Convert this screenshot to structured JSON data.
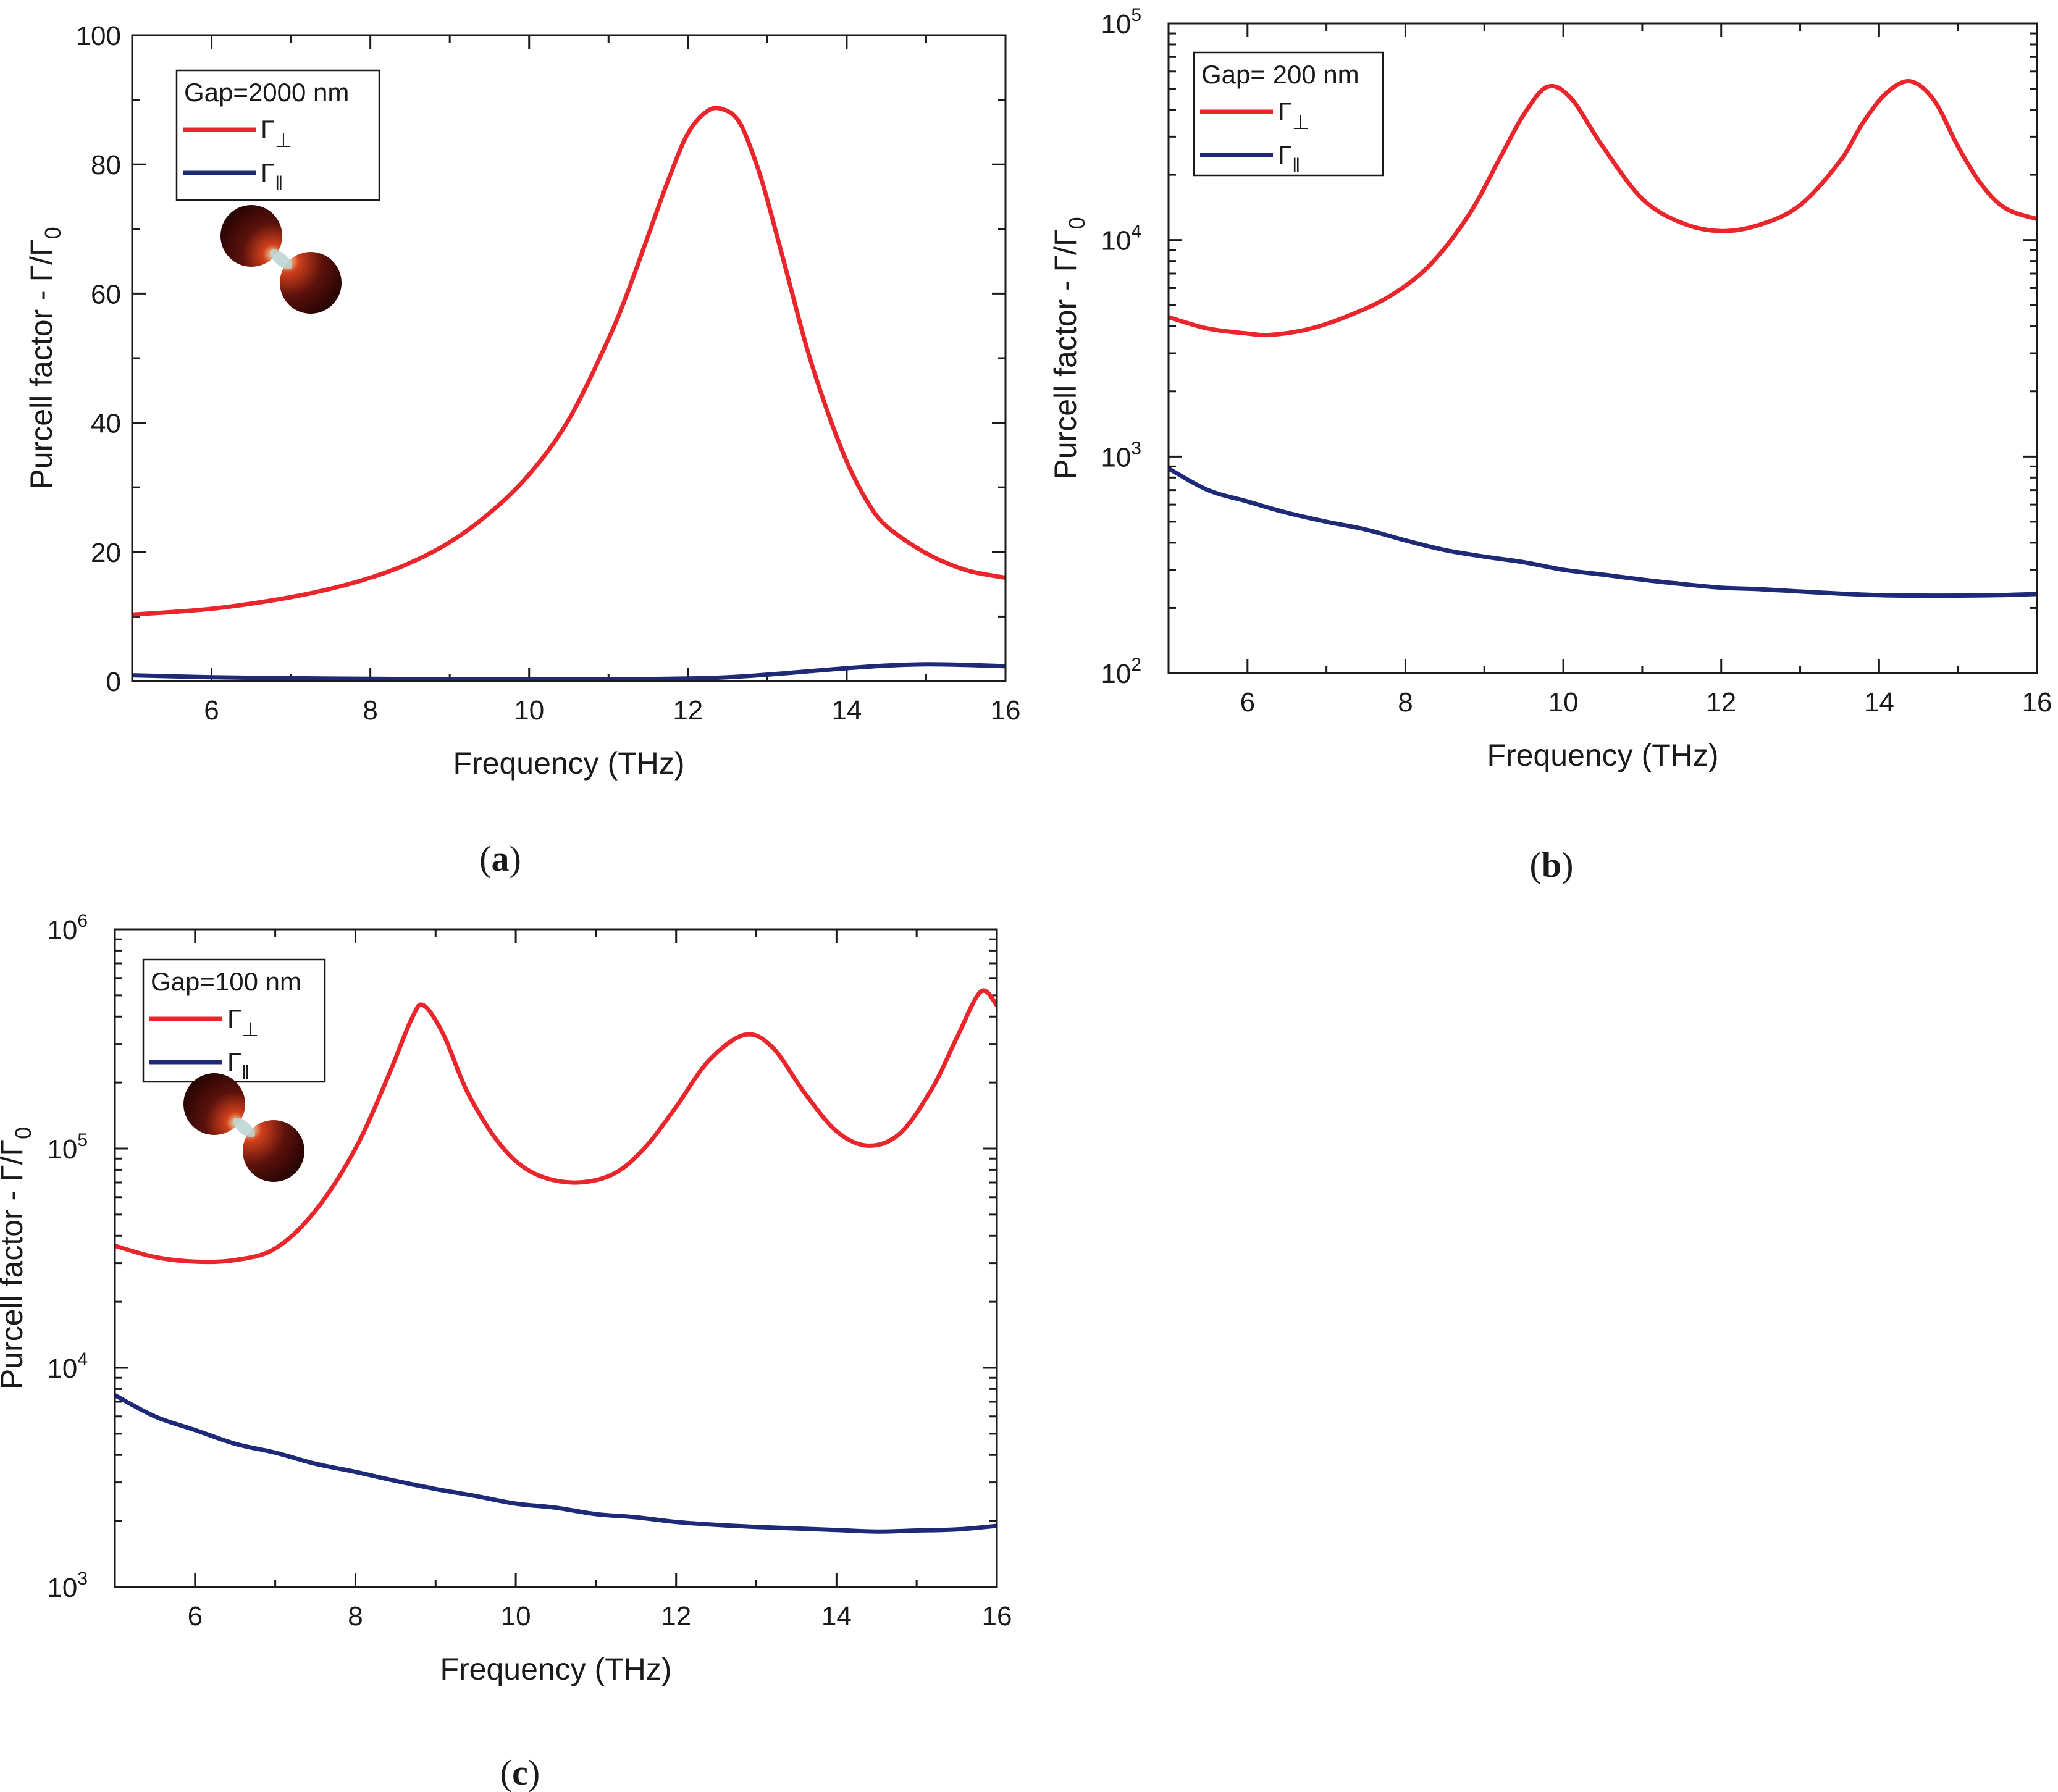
{
  "chart_data": [
    {
      "type": "line",
      "panel_label": "a",
      "xlabel": "Frequency (THz)",
      "ylabel": "Purcell factor - Γ/Γ0",
      "yscale": "linear",
      "xlim": [
        5,
        16
      ],
      "ylim": [
        0,
        100
      ],
      "xticks": [
        6,
        8,
        10,
        12,
        14,
        16
      ],
      "yticks": [
        0,
        20,
        40,
        60,
        80,
        100
      ],
      "legend": {
        "title": "Gap=2000 nm",
        "position": "top-left"
      },
      "series": [
        {
          "name": "Γ⊥",
          "color": "#e8262b",
          "x": [
            5,
            5.5,
            6,
            6.5,
            7,
            7.5,
            8,
            8.5,
            9,
            9.5,
            10,
            10.5,
            11,
            11.25,
            11.5,
            11.75,
            12,
            12.25,
            12.45,
            12.65,
            12.85,
            13,
            13.25,
            13.5,
            13.75,
            14,
            14.25,
            14.5,
            15,
            15.5,
            16
          ],
          "y": [
            10.3,
            10.7,
            11.2,
            12,
            13,
            14.3,
            16,
            18.3,
            21.5,
            26,
            32,
            40.5,
            53,
            60.5,
            69,
            77.5,
            84.8,
            88.3,
            88.5,
            86.5,
            80.5,
            74.5,
            63,
            51.5,
            42,
            34,
            28,
            24,
            19.8,
            17.2,
            16
          ]
        },
        {
          "name": "Γ‖",
          "color": "#1e2a78",
          "x": [
            5,
            6,
            7,
            8,
            9,
            10,
            11,
            12,
            12.5,
            13,
            13.5,
            14,
            14.5,
            15,
            15.5,
            16
          ],
          "y": [
            0.9,
            0.6,
            0.45,
            0.35,
            0.3,
            0.25,
            0.25,
            0.4,
            0.6,
            1.0,
            1.5,
            2.0,
            2.4,
            2.6,
            2.5,
            2.3
          ]
        }
      ]
    },
    {
      "type": "line",
      "panel_label": "b",
      "xlabel": "Frequency (THz)",
      "ylabel": "Purcell factor - Γ/Γ0",
      "yscale": "log",
      "xlim": [
        5,
        16
      ],
      "ylim": [
        100,
        100000
      ],
      "xticks": [
        6,
        8,
        10,
        12,
        14,
        16
      ],
      "yticks": [
        100,
        1000,
        10000,
        100000
      ],
      "legend": {
        "title": "Gap= 200 nm",
        "position": "top-left"
      },
      "series": [
        {
          "name": "Γ⊥",
          "color": "#e8262b",
          "x": [
            5,
            5.5,
            6,
            6.3,
            6.8,
            7.3,
            7.8,
            8.3,
            8.8,
            9.2,
            9.5,
            9.8,
            10.1,
            10.5,
            11,
            11.5,
            12,
            12.5,
            13,
            13.5,
            13.8,
            14.1,
            14.4,
            14.7,
            15,
            15.3,
            15.6,
            16
          ],
          "y": [
            4400,
            3900,
            3700,
            3650,
            3900,
            4500,
            5500,
            7600,
            13000,
            24000,
            38000,
            51000,
            45000,
            27000,
            15500,
            12000,
            11000,
            11800,
            14500,
            23000,
            35000,
            48000,
            54000,
            44000,
            27000,
            18000,
            14000,
            12500
          ]
        },
        {
          "name": "Γ‖",
          "color": "#1e2a78",
          "x": [
            5,
            5.5,
            6,
            6.5,
            7,
            7.5,
            8,
            8.5,
            9,
            9.5,
            10,
            10.5,
            11,
            11.5,
            12,
            12.5,
            13,
            13.5,
            14,
            14.5,
            15,
            15.5,
            16
          ],
          "y": [
            880,
            700,
            620,
            550,
            500,
            460,
            410,
            370,
            345,
            325,
            300,
            285,
            270,
            258,
            248,
            244,
            238,
            233,
            229,
            228,
            228,
            229,
            232
          ]
        }
      ]
    },
    {
      "type": "line",
      "panel_label": "c",
      "xlabel": "Frequency (THz)",
      "ylabel": "Purcell factor - Γ/Γ0",
      "yscale": "log",
      "xlim": [
        5,
        16
      ],
      "ylim": [
        1000,
        1000000
      ],
      "xticks": [
        6,
        8,
        10,
        12,
        14,
        16
      ],
      "yticks": [
        1000,
        10000,
        100000,
        1000000
      ],
      "legend": {
        "title": "Gap=100 nm",
        "position": "top-left"
      },
      "series": [
        {
          "name": "Γ⊥",
          "color": "#e8262b",
          "x": [
            5,
            5.5,
            6,
            6.5,
            7,
            7.5,
            8,
            8.4,
            8.7,
            8.85,
            9.1,
            9.4,
            9.8,
            10.2,
            10.7,
            11.2,
            11.6,
            12,
            12.4,
            12.85,
            13.2,
            13.6,
            14,
            14.4,
            14.8,
            15.2,
            15.5,
            15.8,
            16
          ],
          "y": [
            36000,
            32000,
            30500,
            31000,
            35000,
            52000,
            100000,
            210000,
            390000,
            450000,
            330000,
            180000,
            105000,
            78000,
            70000,
            76000,
            100000,
            155000,
            250000,
            330000,
            290000,
            180000,
            120000,
            103000,
            118000,
            190000,
            320000,
            520000,
            450000
          ]
        },
        {
          "name": "Γ‖",
          "color": "#1e2a78",
          "x": [
            5,
            5.5,
            6,
            6.5,
            7,
            7.5,
            8,
            8.5,
            9,
            9.5,
            10,
            10.5,
            11,
            11.5,
            12,
            12.5,
            13,
            13.5,
            14,
            14.5,
            15,
            15.5,
            16
          ],
          "y": [
            7500,
            6000,
            5200,
            4500,
            4100,
            3650,
            3350,
            3050,
            2800,
            2600,
            2400,
            2300,
            2150,
            2080,
            1980,
            1920,
            1880,
            1850,
            1820,
            1790,
            1810,
            1830,
            1900
          ]
        }
      ]
    }
  ]
}
